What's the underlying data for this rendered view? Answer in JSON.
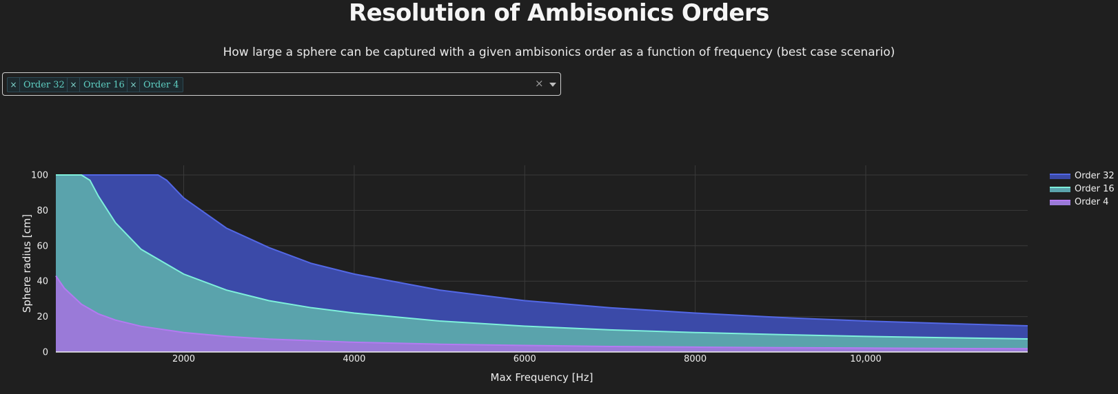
{
  "page": {
    "title": "Resolution of Ambisonics Orders",
    "subtitle": "How large a sphere can be captured with a given ambisonics order as a function of frequency (best case scenario)"
  },
  "selector": {
    "tags": [
      {
        "remove_glyph": "×",
        "label": "Order 32"
      },
      {
        "remove_glyph": "×",
        "label": "Order 16"
      },
      {
        "remove_glyph": "×",
        "label": "Order 4"
      }
    ],
    "clear_glyph": "×"
  },
  "chart_data": {
    "type": "area",
    "xlabel": "Max Frequency [Hz]",
    "ylabel": "Sphere radius [cm]",
    "xlim": [
      500,
      11900
    ],
    "ylim": [
      0,
      100
    ],
    "x_ticks": [
      2000,
      4000,
      6000,
      8000,
      10000
    ],
    "x_tick_labels": [
      "2000",
      "4000",
      "6000",
      "8000",
      "10,000"
    ],
    "y_ticks": [
      0,
      20,
      40,
      60,
      80,
      100
    ],
    "y_tick_labels": [
      "0",
      "20",
      "40",
      "60",
      "80",
      "100"
    ],
    "grid": true,
    "legend_position": "top-right",
    "series": [
      {
        "name": "Order 32",
        "color": "#5368e6",
        "fill": "#3b4aa8",
        "x": [
          500,
          1000,
          1500,
          1700,
          1800,
          2000,
          2500,
          3000,
          3500,
          4000,
          5000,
          6000,
          7000,
          8000,
          9000,
          10000,
          11000,
          11900
        ],
        "values": [
          100,
          100,
          100,
          100,
          97,
          87,
          70,
          59,
          50,
          44,
          35,
          29,
          25,
          22,
          19.5,
          17.5,
          16,
          14.8
        ]
      },
      {
        "name": "Order 16",
        "color": "#7ff0dc",
        "fill": "#5aa3ac",
        "x": [
          500,
          700,
          800,
          900,
          1000,
          1200,
          1500,
          2000,
          2500,
          3000,
          3500,
          4000,
          5000,
          6000,
          7000,
          8000,
          9000,
          10000,
          11000,
          11900
        ],
        "values": [
          100,
          100,
          100,
          97,
          88,
          73,
          58,
          44,
          35,
          29,
          25,
          22,
          17.5,
          14.6,
          12.5,
          11,
          9.8,
          8.8,
          8,
          7.4
        ]
      },
      {
        "name": "Order 4",
        "color": "#b47af2",
        "fill": "#9a7ad8",
        "x": [
          500,
          600,
          800,
          1000,
          1200,
          1500,
          2000,
          2500,
          3000,
          4000,
          5000,
          6000,
          7000,
          8000,
          9000,
          10000,
          11000,
          11900
        ],
        "values": [
          43,
          36,
          27,
          21.5,
          18,
          14.5,
          11,
          8.8,
          7.3,
          5.5,
          4.4,
          3.7,
          3.1,
          2.75,
          2.45,
          2.2,
          2,
          1.85
        ]
      }
    ]
  }
}
